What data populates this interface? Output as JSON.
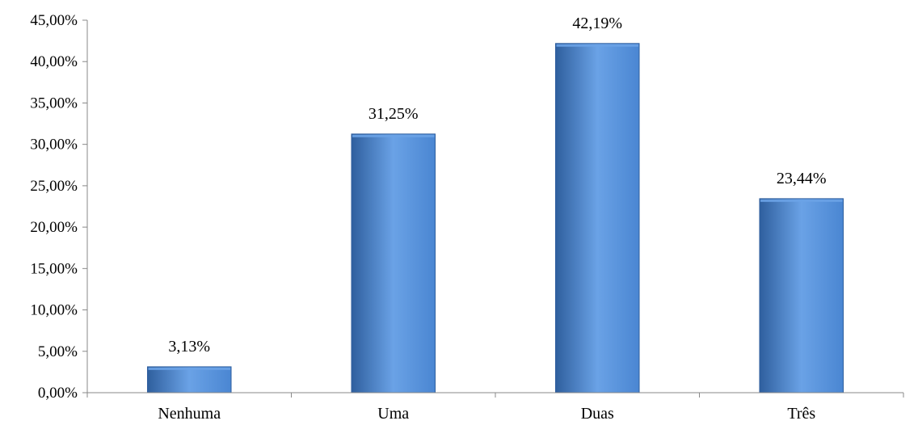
{
  "chart_data": {
    "type": "bar",
    "title": "",
    "xlabel": "",
    "ylabel": "",
    "categories": [
      "Nenhuma",
      "Uma",
      "Duas",
      "Três"
    ],
    "values": [
      3.13,
      31.25,
      42.19,
      23.44
    ],
    "data_labels": [
      "3,13%",
      "31,25%",
      "42,19%",
      "23,44%"
    ],
    "ylim": [
      0,
      45
    ],
    "ytick_values": [
      0,
      5,
      10,
      15,
      20,
      25,
      30,
      35,
      40,
      45
    ],
    "ytick_labels": [
      "0,00%",
      "5,00%",
      "10,00%",
      "15,00%",
      "20,00%",
      "25,00%",
      "30,00%",
      "35,00%",
      "40,00%",
      "45,00%"
    ],
    "grid": false,
    "legend": "none",
    "bar_color": "#4a86d2",
    "bar_highlight_color": "#6aa2e6",
    "bar_edge_color": "#2f5f9e",
    "axis_color": "#888888"
  }
}
